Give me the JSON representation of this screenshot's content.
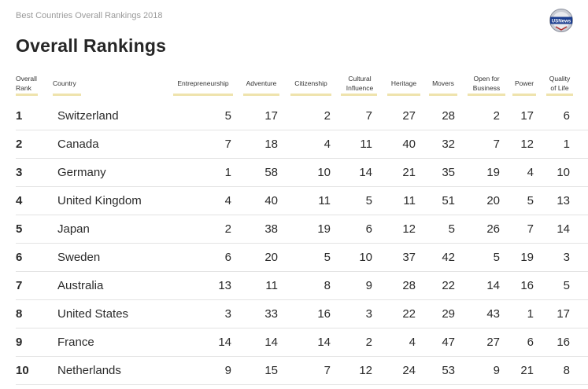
{
  "caption": "Best Countries Overall Rankings 2018",
  "logo": {
    "icon": "usnews-logo-icon",
    "text": "USNews"
  },
  "title": "Overall Rankings",
  "headers": {
    "rank": [
      "Overall",
      "Rank"
    ],
    "country": [
      "Country"
    ],
    "entrepreneurship": [
      "Entrepreneurship"
    ],
    "adventure": [
      "Adventure"
    ],
    "citizenship": [
      "Citizenship"
    ],
    "cultural": [
      "Cultural",
      "Influence"
    ],
    "heritage": [
      "Heritage"
    ],
    "movers": [
      "Movers"
    ],
    "open": [
      "Open for",
      "Business"
    ],
    "power": [
      "Power"
    ],
    "quality": [
      "Quality",
      "of Life"
    ]
  },
  "colors": {
    "underline": "#efe3ad",
    "separator": "#e3e3e3"
  },
  "rows": [
    {
      "rank": "1",
      "country": "Switzerland",
      "entrepreneurship": "5",
      "adventure": "17",
      "citizenship": "2",
      "cultural": "7",
      "heritage": "27",
      "movers": "28",
      "open": "2",
      "power": "17",
      "quality": "6"
    },
    {
      "rank": "2",
      "country": "Canada",
      "entrepreneurship": "7",
      "adventure": "18",
      "citizenship": "4",
      "cultural": "11",
      "heritage": "40",
      "movers": "32",
      "open": "7",
      "power": "12",
      "quality": "1"
    },
    {
      "rank": "3",
      "country": "Germany",
      "entrepreneurship": "1",
      "adventure": "58",
      "citizenship": "10",
      "cultural": "14",
      "heritage": "21",
      "movers": "35",
      "open": "19",
      "power": "4",
      "quality": "10"
    },
    {
      "rank": "4",
      "country": "United Kingdom",
      "entrepreneurship": "4",
      "adventure": "40",
      "citizenship": "11",
      "cultural": "5",
      "heritage": "11",
      "movers": "51",
      "open": "20",
      "power": "5",
      "quality": "13"
    },
    {
      "rank": "5",
      "country": "Japan",
      "entrepreneurship": "2",
      "adventure": "38",
      "citizenship": "19",
      "cultural": "6",
      "heritage": "12",
      "movers": "5",
      "open": "26",
      "power": "7",
      "quality": "14"
    },
    {
      "rank": "6",
      "country": "Sweden",
      "entrepreneurship": "6",
      "adventure": "20",
      "citizenship": "5",
      "cultural": "10",
      "heritage": "37",
      "movers": "42",
      "open": "5",
      "power": "19",
      "quality": "3"
    },
    {
      "rank": "7",
      "country": "Australia",
      "entrepreneurship": "13",
      "adventure": "11",
      "citizenship": "8",
      "cultural": "9",
      "heritage": "28",
      "movers": "22",
      "open": "14",
      "power": "16",
      "quality": "5"
    },
    {
      "rank": "8",
      "country": "United States",
      "entrepreneurship": "3",
      "adventure": "33",
      "citizenship": "16",
      "cultural": "3",
      "heritage": "22",
      "movers": "29",
      "open": "43",
      "power": "1",
      "quality": "17"
    },
    {
      "rank": "9",
      "country": "France",
      "entrepreneurship": "14",
      "adventure": "14",
      "citizenship": "14",
      "cultural": "2",
      "heritage": "4",
      "movers": "47",
      "open": "27",
      "power": "6",
      "quality": "16"
    },
    {
      "rank": "10",
      "country": "Netherlands",
      "entrepreneurship": "9",
      "adventure": "15",
      "citizenship": "7",
      "cultural": "12",
      "heritage": "24",
      "movers": "53",
      "open": "9",
      "power": "21",
      "quality": "8"
    }
  ]
}
